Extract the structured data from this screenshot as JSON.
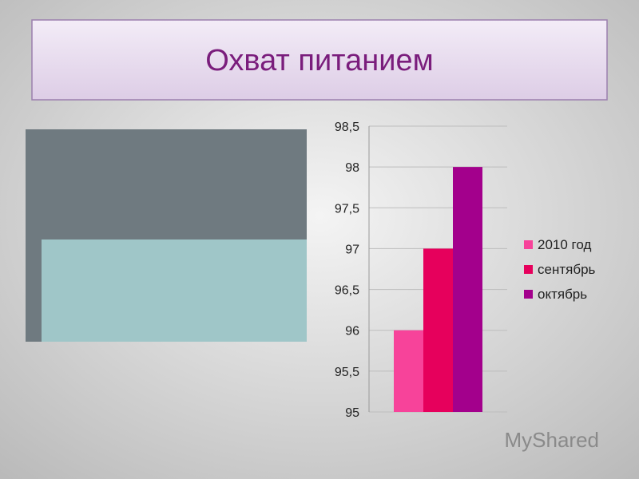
{
  "title": "Охват питанием",
  "watermark": "MyShared",
  "chart_data": {
    "type": "bar",
    "categories": [
      null
    ],
    "series": [
      {
        "name": "2010 год",
        "color": "#f7439a",
        "values": [
          96
        ]
      },
      {
        "name": "сентябрь",
        "color": "#e6005c",
        "values": [
          97
        ]
      },
      {
        "name": "октябрь",
        "color": "#a3008c",
        "values": [
          98
        ]
      }
    ],
    "ylim": [
      95,
      98.5
    ],
    "yticks": [
      95,
      {
        "value": 95.5,
        "label": "95,5"
      },
      96,
      {
        "value": 96.5,
        "label": "96,5"
      },
      97,
      {
        "value": 97.5,
        "label": "97,5"
      },
      98,
      {
        "value": 98.5,
        "label": "98,5"
      }
    ],
    "grid": true,
    "legend": "right"
  }
}
